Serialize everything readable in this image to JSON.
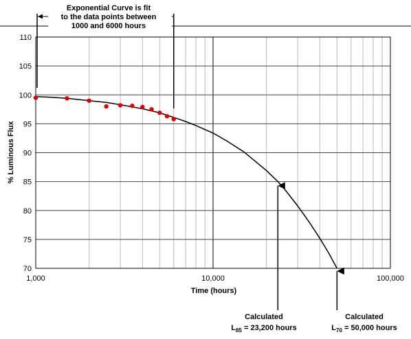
{
  "chart_data": {
    "type": "scatter",
    "xscale": "log",
    "xlim": [
      1000,
      100000
    ],
    "ylim": [
      70,
      110
    ],
    "grid": true,
    "xlabel": "Time (hours)",
    "ylabel": "% Luminous Flux",
    "x_ticks": [
      1000,
      10000,
      100000
    ],
    "x_tick_labels": [
      "1,000",
      "10,000",
      "100,000"
    ],
    "y_ticks": [
      70,
      75,
      80,
      85,
      90,
      95,
      100,
      105,
      110
    ],
    "y_tick_labels": [
      "70",
      "75",
      "80",
      "85",
      "90",
      "95",
      "100",
      "105",
      "110"
    ],
    "series": [
      {
        "type": "scatter",
        "color": "#dd0000",
        "x": [
          1000,
          1500,
          2000,
          2500,
          3000,
          3500,
          4000,
          4500,
          5000,
          5500,
          6000
        ],
        "y": [
          99.5,
          99.4,
          99.0,
          98.0,
          98.2,
          98.1,
          97.9,
          97.5,
          96.9,
          96.3,
          95.8
        ]
      },
      {
        "type": "line",
        "color": "#000000",
        "x": [
          1000,
          1200,
          1500,
          2000,
          2500,
          3000,
          4000,
          5000,
          6000,
          7000,
          8000,
          10000,
          12000,
          15000,
          20000,
          23200,
          25000,
          30000,
          35000,
          40000,
          45000,
          50000
        ],
        "y": [
          99.7,
          99.6,
          99.4,
          99.0,
          98.7,
          98.3,
          97.6,
          96.9,
          96.1,
          95.4,
          94.7,
          93.4,
          92.0,
          90.1,
          86.9,
          85.0,
          83.9,
          80.8,
          77.9,
          75.2,
          72.6,
          70.0
        ]
      }
    ],
    "annotations": {
      "fit_note_line1": "Exponential Curve is fit",
      "fit_note_line2": "to the data points between",
      "fit_note_line3": "1000 and 6000 hours",
      "l85_label_line1": "Calculated",
      "l85_label_line2_main": "L",
      "l85_label_line2_sub": "85",
      "l85_label_line2_rest": " = 23,200 hours",
      "l85_x": 23200,
      "l85_y": 85,
      "l70_label_line1": "Calculated",
      "l70_label_line2_main": "L",
      "l70_label_line2_sub": "70",
      "l70_label_line2_rest": " = 50,000 hours",
      "l70_x": 50000,
      "l70_y": 70,
      "fit_range": [
        1000,
        6000
      ]
    }
  }
}
